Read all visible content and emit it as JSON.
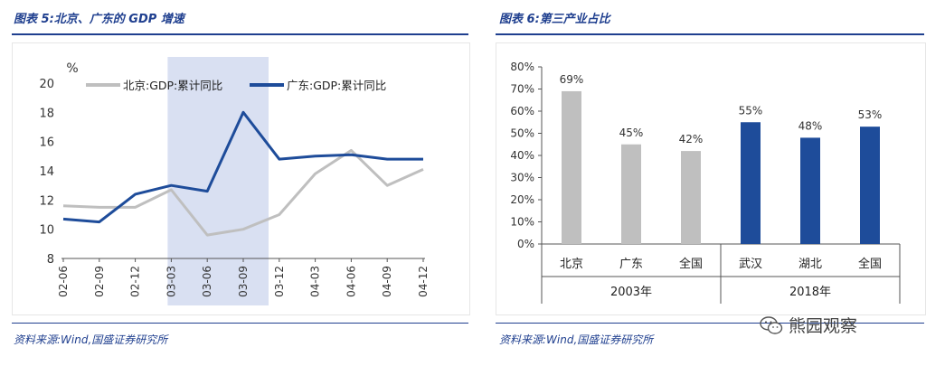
{
  "left": {
    "title": "图表 5:北京、广东的 GDP 增速",
    "source": "资料来源:Wind,国盛证券研究所"
  },
  "right": {
    "title": "图表 6:第三产业占比",
    "source": "资料来源:Wind,国盛证券研究所"
  },
  "watermark": {
    "text": "熊园观察",
    "icon": "wechat-icon"
  },
  "colors": {
    "title_blue": "#1f3f8f",
    "series_gray": "#bfbfbf",
    "series_blue": "#1e4c9a",
    "highlight": "#d9e0f2"
  },
  "chart_data": [
    {
      "type": "line",
      "ylabel": "%",
      "ylim": [
        8,
        20
      ],
      "yticks": [
        "8",
        "10",
        "12",
        "14",
        "16",
        "18",
        "20"
      ],
      "x": [
        "02-06",
        "02-09",
        "02-12",
        "03-03",
        "03-06",
        "03-09",
        "03-12",
        "04-03",
        "04-06",
        "04-09",
        "04-12"
      ],
      "highlight_range": [
        "03-03",
        "03-09"
      ],
      "legend_position": "top",
      "series": [
        {
          "name": "北京:GDP:累计同比",
          "color": "#bfbfbf",
          "values": [
            11.6,
            11.5,
            11.5,
            12.7,
            9.6,
            10.0,
            11.0,
            13.8,
            15.4,
            13.0,
            14.1
          ]
        },
        {
          "name": "广东:GDP:累计同比",
          "color": "#1e4c9a",
          "values": [
            10.7,
            10.5,
            12.4,
            13.0,
            12.6,
            18.0,
            14.8,
            15.0,
            15.1,
            14.8,
            14.8
          ]
        }
      ]
    },
    {
      "type": "bar",
      "ylim": [
        0,
        80
      ],
      "yticks": [
        "0%",
        "10%",
        "20%",
        "30%",
        "40%",
        "50%",
        "60%",
        "70%",
        "80%"
      ],
      "categories": [
        "北京",
        "广东",
        "全国",
        "武汉",
        "湖北",
        "全国"
      ],
      "groups": [
        {
          "label": "2003年",
          "span": 3
        },
        {
          "label": "2018年",
          "span": 3
        }
      ],
      "values": [
        69,
        45,
        42,
        55,
        48,
        53
      ],
      "data_labels": [
        "69%",
        "45%",
        "42%",
        "55%",
        "48%",
        "53%"
      ],
      "colors": [
        "#bfbfbf",
        "#bfbfbf",
        "#bfbfbf",
        "#1e4c9a",
        "#1e4c9a",
        "#1e4c9a"
      ]
    }
  ]
}
